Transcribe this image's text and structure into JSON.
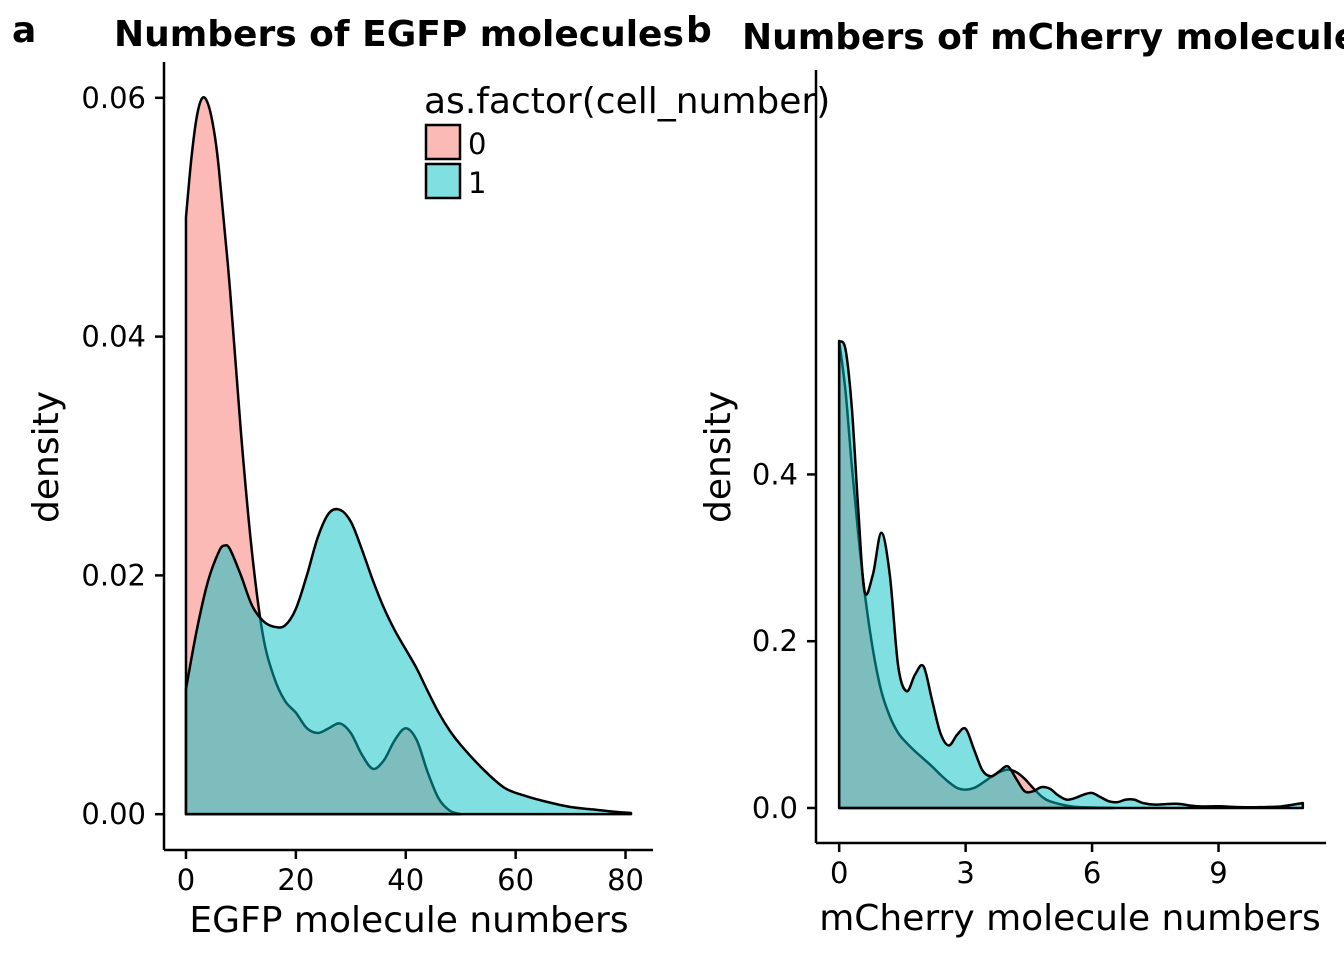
{
  "chart_data": [
    {
      "panel_label": "a",
      "type": "area",
      "title": "Numbers of EGFP molecules",
      "xlabel": "EGFP molecule numbers",
      "ylabel": "density",
      "xlim": [
        -4,
        85
      ],
      "ylim": [
        -0.003,
        0.063
      ],
      "xticks": [
        0,
        20,
        40,
        60,
        80
      ],
      "xtick_labels": [
        "0",
        "20",
        "40",
        "60",
        "80"
      ],
      "yticks": [
        0,
        0.02,
        0.04,
        0.06
      ],
      "ytick_labels": [
        "0.00",
        "0.02",
        "0.04",
        "0.06"
      ],
      "grid": false,
      "series": [
        {
          "name": "0",
          "color": "#F8766D",
          "x": [
            0,
            1,
            2,
            3,
            4,
            5,
            6,
            8,
            10,
            12,
            14,
            16,
            18,
            20,
            22,
            24,
            26,
            28,
            30,
            32,
            34,
            36,
            38,
            40,
            42,
            44,
            46,
            48,
            50
          ],
          "y": [
            0.05,
            0.055,
            0.0585,
            0.06,
            0.0595,
            0.0575,
            0.054,
            0.044,
            0.032,
            0.022,
            0.015,
            0.0115,
            0.0095,
            0.0085,
            0.0072,
            0.0068,
            0.0072,
            0.0076,
            0.0068,
            0.005,
            0.0038,
            0.0045,
            0.0062,
            0.0072,
            0.0062,
            0.0035,
            0.0013,
            0.0003,
            0.0
          ]
        },
        {
          "name": "1",
          "color": "#00BFC4",
          "x": [
            0,
            2,
            4,
            6,
            7,
            8,
            10,
            12,
            14,
            16,
            18,
            20,
            22,
            24,
            26,
            28,
            30,
            32,
            34,
            36,
            38,
            40,
            42,
            44,
            46,
            48,
            50,
            54,
            58,
            62,
            66,
            70,
            74,
            78,
            81
          ],
          "y": [
            0.0105,
            0.0155,
            0.0195,
            0.022,
            0.0225,
            0.0222,
            0.02,
            0.0175,
            0.0162,
            0.0157,
            0.0158,
            0.0172,
            0.02,
            0.0232,
            0.0252,
            0.0255,
            0.0245,
            0.0222,
            0.0196,
            0.0173,
            0.0154,
            0.0138,
            0.0122,
            0.0103,
            0.0085,
            0.007,
            0.0058,
            0.0038,
            0.0022,
            0.0015,
            0.001,
            0.0006,
            0.0004,
            0.0002,
            0.0001
          ]
        }
      ]
    },
    {
      "panel_label": "b",
      "type": "area",
      "title": "Numbers of mCherry molecules",
      "xlabel": "mCherry molecule numbers",
      "ylabel": "density",
      "xlim": [
        -0.55,
        11.55
      ],
      "ylim": [
        -0.042,
        0.885
      ],
      "xticks": [
        0,
        3,
        6,
        9
      ],
      "xtick_labels": [
        "0",
        "3",
        "6",
        "9"
      ],
      "yticks": [
        0,
        0.2,
        0.4
      ],
      "ytick_labels": [
        "0.0",
        "0.2",
        "0.4"
      ],
      "grid": false,
      "series": [
        {
          "name": "0",
          "color": "#F8766D",
          "x": [
            0,
            0.15,
            0.3,
            0.45,
            0.6,
            0.8,
            1.0,
            1.2,
            1.4,
            1.6,
            1.8,
            2.0,
            2.2,
            2.4,
            2.6,
            2.8,
            3.0,
            3.2,
            3.4,
            3.6,
            3.8,
            4.0,
            4.2,
            4.4,
            4.6,
            4.8,
            5.0,
            5.5,
            6.0,
            6.5
          ],
          "y": [
            0.56,
            0.5,
            0.41,
            0.33,
            0.26,
            0.19,
            0.14,
            0.11,
            0.09,
            0.078,
            0.068,
            0.059,
            0.05,
            0.04,
            0.031,
            0.024,
            0.022,
            0.024,
            0.03,
            0.037,
            0.043,
            0.046,
            0.043,
            0.035,
            0.024,
            0.014,
            0.008,
            0.002,
            0.0005,
            0.0
          ]
        },
        {
          "name": "1",
          "color": "#00BFC4",
          "x": [
            0,
            0.15,
            0.3,
            0.45,
            0.6,
            0.8,
            1.0,
            1.2,
            1.4,
            1.6,
            1.8,
            2.0,
            2.2,
            2.4,
            2.6,
            2.8,
            3.0,
            3.2,
            3.4,
            3.6,
            3.8,
            4.0,
            4.2,
            4.4,
            4.6,
            4.8,
            5.0,
            5.2,
            5.4,
            5.6,
            5.8,
            6.0,
            6.2,
            6.4,
            6.6,
            6.8,
            7.0,
            7.2,
            7.5,
            8.0,
            8.5,
            9.0,
            9.5,
            10.0,
            10.5,
            11.0
          ],
          "y": [
            0.56,
            0.55,
            0.48,
            0.36,
            0.26,
            0.28,
            0.33,
            0.28,
            0.17,
            0.14,
            0.16,
            0.17,
            0.13,
            0.09,
            0.075,
            0.088,
            0.095,
            0.07,
            0.045,
            0.038,
            0.044,
            0.05,
            0.035,
            0.02,
            0.02,
            0.025,
            0.023,
            0.015,
            0.01,
            0.012,
            0.016,
            0.018,
            0.013,
            0.008,
            0.007,
            0.01,
            0.01,
            0.006,
            0.004,
            0.005,
            0.002,
            0.002,
            0.001,
            0.001,
            0.002,
            0.006
          ]
        }
      ]
    }
  ],
  "legend": {
    "title": "as.factor(cell_number)",
    "items": [
      {
        "label": "0",
        "color": "#F8766D"
      },
      {
        "label": "1",
        "color": "#00BFC4"
      }
    ]
  }
}
